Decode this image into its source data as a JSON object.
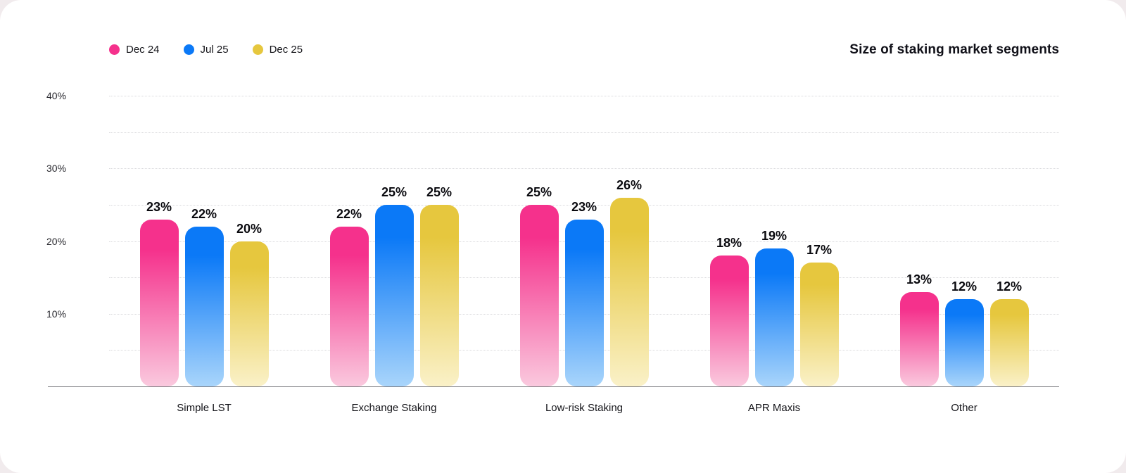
{
  "chart_data": {
    "type": "bar",
    "title": "Size of staking market segments",
    "categories": [
      "Simple LST",
      "Exchange Staking",
      "Low-risk Staking",
      "APR Maxis",
      "Other"
    ],
    "series": [
      {
        "name": "Dec 24",
        "color": "#f5318c",
        "color_light": "#fac9de",
        "values": [
          23,
          22,
          25,
          18,
          13
        ]
      },
      {
        "name": "Jul 25",
        "color": "#0b79f7",
        "color_light": "#a9d5fb",
        "values": [
          22,
          25,
          23,
          19,
          12
        ]
      },
      {
        "name": "Dec 25",
        "color": "#e6c73e",
        "color_light": "#faf1c8",
        "values": [
          20,
          25,
          26,
          17,
          12
        ]
      }
    ],
    "y_ticks": [
      10,
      20,
      30,
      40
    ],
    "gridlines": [
      5,
      10,
      15,
      20,
      25,
      30,
      35,
      40
    ],
    "ylim": [
      0,
      40
    ],
    "value_suffix": "%",
    "legend_position": "top-left",
    "grid": "dotted-horizontal",
    "value_labels": "above-bars"
  }
}
